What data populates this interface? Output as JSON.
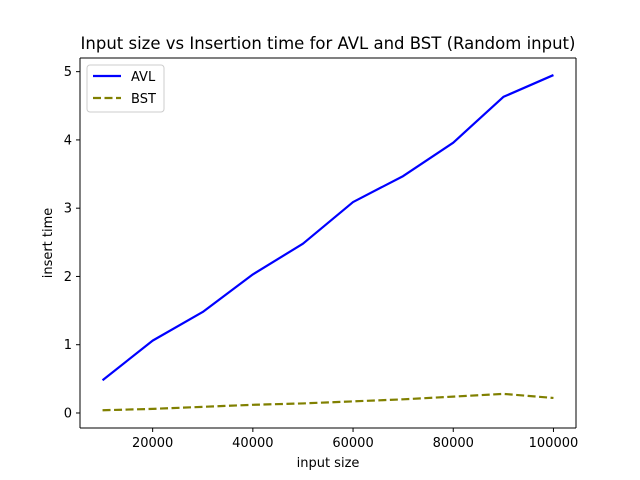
{
  "chart_data": {
    "type": "line",
    "title": "Input size vs Insertion time for AVL and BST (Random input)",
    "xlabel": "input size",
    "ylabel": "insert time",
    "xlim": [
      5500,
      104500
    ],
    "ylim": [
      -0.22,
      5.2
    ],
    "xticks": [
      20000,
      40000,
      60000,
      80000,
      100000
    ],
    "yticks": [
      0,
      1,
      2,
      3,
      4,
      5
    ],
    "grid": false,
    "legend_position": "top-left",
    "x": [
      10000,
      20000,
      30000,
      40000,
      50000,
      60000,
      70000,
      80000,
      90000,
      100000
    ],
    "series": [
      {
        "name": "AVL",
        "color": "#0000ff",
        "linestyle": "solid",
        "values": [
          0.48,
          1.06,
          1.48,
          2.03,
          2.48,
          3.09,
          3.47,
          3.96,
          4.63,
          4.95
        ]
      },
      {
        "name": "BST",
        "color": "#808000",
        "linestyle": "dashed",
        "values": [
          0.04,
          0.06,
          0.09,
          0.12,
          0.14,
          0.17,
          0.2,
          0.24,
          0.28,
          0.22
        ]
      }
    ]
  }
}
